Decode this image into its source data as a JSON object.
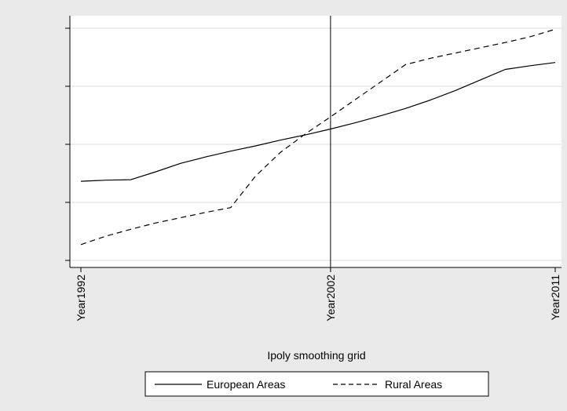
{
  "chart_data": {
    "type": "line",
    "title": "",
    "xlabel": "Ipoly smoothing grid",
    "ylabel": "",
    "x_range": [
      1992,
      2011
    ],
    "x_ticks": [
      {
        "value": 1992,
        "label": "Year1992"
      },
      {
        "value": 2002,
        "label": "Year2002"
      },
      {
        "value": 2011,
        "label": "Year2011"
      }
    ],
    "y_ticks_count": 5,
    "y_tick_labels_shown": false,
    "ylim": [
      0,
      4.4
    ],
    "reference_line_x": 2002,
    "grid": true,
    "legend_position": "bottom",
    "colors": {
      "plot_background": "#ffffff",
      "outer_background": "#eaeaea",
      "grid": "#dedede",
      "line": "#000000"
    },
    "series": [
      {
        "name": "European Areas",
        "style": "solid",
        "x": [
          1992,
          1993,
          1994,
          1995,
          1996,
          1997,
          1998,
          1999,
          2000,
          2001,
          2002,
          2003,
          2004,
          2005,
          2006,
          2007,
          2008,
          2009,
          2010,
          2011
        ],
        "y": [
          1.5,
          1.52,
          1.53,
          1.68,
          1.84,
          1.96,
          2.07,
          2.17,
          2.28,
          2.38,
          2.49,
          2.61,
          2.74,
          2.88,
          3.04,
          3.22,
          3.42,
          3.62,
          3.69,
          3.75
        ]
      },
      {
        "name": "Rural Areas",
        "style": "dashed",
        "x": [
          1992,
          1993,
          1994,
          1995,
          1996,
          1997,
          1998,
          1999,
          2000,
          2001,
          2002,
          2003,
          2004,
          2005,
          2006,
          2007,
          2008,
          2009,
          2010,
          2011
        ],
        "y": [
          0.3,
          0.46,
          0.59,
          0.71,
          0.81,
          0.91,
          1.0,
          1.6,
          2.05,
          2.4,
          2.72,
          3.05,
          3.38,
          3.71,
          3.83,
          3.93,
          4.03,
          4.13,
          4.24,
          4.38
        ]
      }
    ]
  }
}
